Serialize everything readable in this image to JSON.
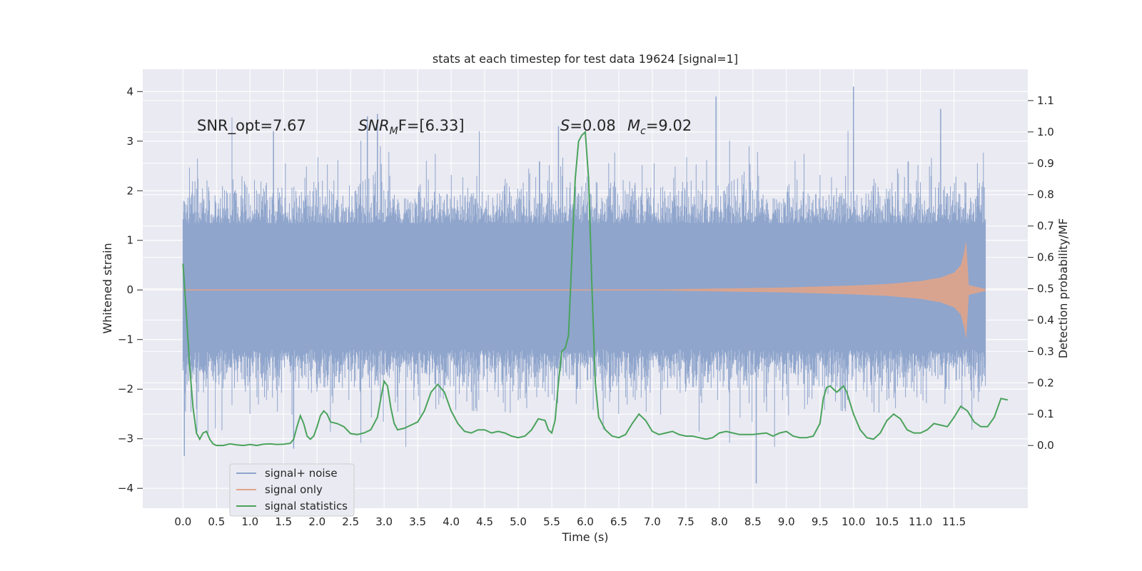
{
  "chart_data": {
    "type": "line",
    "title": "stats at each timestep for test data 19624 [signal=1]",
    "xlabel": "Time (s)",
    "ylabel_left": "Whitened strain",
    "ylabel_right": "Detection probability/MF",
    "xlim": [
      -0.6,
      12.6
    ],
    "ylim_left": [
      -4.4,
      4.45
    ],
    "ylim_right": [
      -0.2,
      1.2
    ],
    "x_ticks": [
      "0.0",
      "0.5",
      "1.0",
      "1.5",
      "2.0",
      "2.5",
      "3.0",
      "3.5",
      "4.0",
      "4.5",
      "5.0",
      "5.5",
      "6.0",
      "6.5",
      "7.0",
      "7.5",
      "8.0",
      "8.5",
      "9.0",
      "9.5",
      "10.0",
      "10.5",
      "11.0",
      "11.5"
    ],
    "y_ticks_left": [
      "4",
      "3",
      "2",
      "1",
      "0",
      "−1",
      "−2",
      "−3",
      "−4"
    ],
    "y_ticks_right": [
      "1.1",
      "1.0",
      "0.9",
      "0.8",
      "0.7",
      "0.6",
      "0.5",
      "0.4",
      "0.3",
      "0.2",
      "0.1",
      "0.0"
    ],
    "grid": true,
    "legend_position": "bottom-left",
    "colors": {
      "signal_noise": "#8fa5cc",
      "signal_only": "#e0a48a",
      "statistics": "#4aa35c",
      "plot_bg": "#eaeaf2",
      "grid": "#ffffff"
    },
    "annotations": {
      "snr_opt": "SNR_opt=7.67",
      "snr_mf_main": "SNR",
      "snr_mf_sub": "M",
      "snr_mf_tail": "F=[6.33]",
      "s_label": "S",
      "s_value": "=0.08",
      "mc_label": "M",
      "mc_sub": "c",
      "mc_value": "=9.02"
    },
    "series": [
      {
        "name": "signal+ noise",
        "kind": "noise_band",
        "t_range": [
          0.0,
          11.97
        ],
        "core_band": [
          -1.2,
          1.35
        ],
        "extreme_spikes": [
          {
            "t": 0.02,
            "y": -3.35
          },
          {
            "t": 1.35,
            "y": 3.2
          },
          {
            "t": 2.9,
            "y": 3.55
          },
          {
            "t": 5.6,
            "y": 3.3
          },
          {
            "t": 7.95,
            "y": 3.9
          },
          {
            "t": 8.55,
            "y": -3.9
          },
          {
            "t": 10.0,
            "y": 4.1
          },
          {
            "t": 11.3,
            "y": 3.65
          },
          {
            "t": 1.65,
            "y": -3.2
          },
          {
            "t": 2.75,
            "y": 3.5
          }
        ]
      },
      {
        "name": "signal only",
        "kind": "chirp_envelope",
        "t_start": 7.0,
        "t_merger": 11.68,
        "t_end": 11.97,
        "envelope": [
          {
            "t": 7.0,
            "a": 0.01
          },
          {
            "t": 8.0,
            "a": 0.03
          },
          {
            "t": 9.0,
            "a": 0.05
          },
          {
            "t": 10.0,
            "a": 0.09
          },
          {
            "t": 10.5,
            "a": 0.12
          },
          {
            "t": 11.0,
            "a": 0.18
          },
          {
            "t": 11.3,
            "a": 0.25
          },
          {
            "t": 11.5,
            "a": 0.35
          },
          {
            "t": 11.6,
            "a": 0.5
          },
          {
            "t": 11.65,
            "a": 0.75
          },
          {
            "t": 11.68,
            "a": 1.0
          },
          {
            "t": 11.72,
            "a": 0.1
          },
          {
            "t": 11.97,
            "a": 0.02
          }
        ]
      },
      {
        "name": "signal statistics",
        "kind": "line",
        "axis": "right",
        "points": [
          [
            0.0,
            0.58
          ],
          [
            0.05,
            0.42
          ],
          [
            0.1,
            0.25
          ],
          [
            0.15,
            0.12
          ],
          [
            0.2,
            0.04
          ],
          [
            0.25,
            0.02
          ],
          [
            0.3,
            0.04
          ],
          [
            0.35,
            0.045
          ],
          [
            0.4,
            0.02
          ],
          [
            0.45,
            0.005
          ],
          [
            0.5,
            0.0
          ],
          [
            0.6,
            0.0
          ],
          [
            0.7,
            0.005
          ],
          [
            0.8,
            0.002
          ],
          [
            0.9,
            0.0
          ],
          [
            1.0,
            0.003
          ],
          [
            1.1,
            0.0
          ],
          [
            1.2,
            0.004
          ],
          [
            1.3,
            0.005
          ],
          [
            1.4,
            0.003
          ],
          [
            1.5,
            0.004
          ],
          [
            1.6,
            0.007
          ],
          [
            1.65,
            0.02
          ],
          [
            1.7,
            0.06
          ],
          [
            1.75,
            0.095
          ],
          [
            1.8,
            0.07
          ],
          [
            1.85,
            0.03
          ],
          [
            1.9,
            0.02
          ],
          [
            1.95,
            0.03
          ],
          [
            2.0,
            0.06
          ],
          [
            2.05,
            0.095
          ],
          [
            2.1,
            0.11
          ],
          [
            2.15,
            0.1
          ],
          [
            2.2,
            0.075
          ],
          [
            2.3,
            0.07
          ],
          [
            2.4,
            0.06
          ],
          [
            2.5,
            0.038
          ],
          [
            2.6,
            0.035
          ],
          [
            2.7,
            0.04
          ],
          [
            2.8,
            0.05
          ],
          [
            2.9,
            0.09
          ],
          [
            2.95,
            0.15
          ],
          [
            3.0,
            0.205
          ],
          [
            3.05,
            0.19
          ],
          [
            3.1,
            0.12
          ],
          [
            3.15,
            0.07
          ],
          [
            3.2,
            0.05
          ],
          [
            3.3,
            0.055
          ],
          [
            3.4,
            0.065
          ],
          [
            3.5,
            0.075
          ],
          [
            3.6,
            0.11
          ],
          [
            3.7,
            0.17
          ],
          [
            3.8,
            0.195
          ],
          [
            3.9,
            0.17
          ],
          [
            4.0,
            0.11
          ],
          [
            4.1,
            0.07
          ],
          [
            4.2,
            0.045
          ],
          [
            4.3,
            0.04
          ],
          [
            4.4,
            0.05
          ],
          [
            4.5,
            0.05
          ],
          [
            4.6,
            0.04
          ],
          [
            4.7,
            0.045
          ],
          [
            4.8,
            0.04
          ],
          [
            4.9,
            0.03
          ],
          [
            5.0,
            0.025
          ],
          [
            5.1,
            0.03
          ],
          [
            5.2,
            0.05
          ],
          [
            5.3,
            0.085
          ],
          [
            5.4,
            0.08
          ],
          [
            5.45,
            0.05
          ],
          [
            5.5,
            0.04
          ],
          [
            5.55,
            0.08
          ],
          [
            5.6,
            0.2
          ],
          [
            5.65,
            0.3
          ],
          [
            5.7,
            0.31
          ],
          [
            5.75,
            0.35
          ],
          [
            5.8,
            0.6
          ],
          [
            5.85,
            0.85
          ],
          [
            5.9,
            0.97
          ],
          [
            5.95,
            0.99
          ],
          [
            6.0,
            1.0
          ],
          [
            6.05,
            0.85
          ],
          [
            6.1,
            0.5
          ],
          [
            6.15,
            0.2
          ],
          [
            6.2,
            0.09
          ],
          [
            6.3,
            0.05
          ],
          [
            6.4,
            0.03
          ],
          [
            6.5,
            0.025
          ],
          [
            6.6,
            0.035
          ],
          [
            6.7,
            0.07
          ],
          [
            6.8,
            0.1
          ],
          [
            6.9,
            0.08
          ],
          [
            7.0,
            0.045
          ],
          [
            7.1,
            0.035
          ],
          [
            7.2,
            0.04
          ],
          [
            7.3,
            0.045
          ],
          [
            7.4,
            0.035
          ],
          [
            7.5,
            0.03
          ],
          [
            7.6,
            0.03
          ],
          [
            7.7,
            0.025
          ],
          [
            7.8,
            0.02
          ],
          [
            7.9,
            0.025
          ],
          [
            8.0,
            0.04
          ],
          [
            8.1,
            0.045
          ],
          [
            8.2,
            0.04
          ],
          [
            8.3,
            0.035
          ],
          [
            8.5,
            0.035
          ],
          [
            8.7,
            0.04
          ],
          [
            8.8,
            0.03
          ],
          [
            8.9,
            0.04
          ],
          [
            9.0,
            0.045
          ],
          [
            9.1,
            0.03
          ],
          [
            9.2,
            0.025
          ],
          [
            9.3,
            0.025
          ],
          [
            9.4,
            0.03
          ],
          [
            9.5,
            0.07
          ],
          [
            9.55,
            0.15
          ],
          [
            9.6,
            0.185
          ],
          [
            9.65,
            0.19
          ],
          [
            9.7,
            0.18
          ],
          [
            9.75,
            0.17
          ],
          [
            9.8,
            0.18
          ],
          [
            9.85,
            0.19
          ],
          [
            9.9,
            0.17
          ],
          [
            10.0,
            0.1
          ],
          [
            10.1,
            0.05
          ],
          [
            10.2,
            0.025
          ],
          [
            10.3,
            0.02
          ],
          [
            10.4,
            0.04
          ],
          [
            10.5,
            0.08
          ],
          [
            10.6,
            0.1
          ],
          [
            10.7,
            0.085
          ],
          [
            10.8,
            0.05
          ],
          [
            10.9,
            0.04
          ],
          [
            11.0,
            0.04
          ],
          [
            11.1,
            0.05
          ],
          [
            11.2,
            0.07
          ],
          [
            11.3,
            0.065
          ],
          [
            11.4,
            0.06
          ],
          [
            11.5,
            0.09
          ],
          [
            11.6,
            0.125
          ],
          [
            11.7,
            0.11
          ],
          [
            11.8,
            0.075
          ],
          [
            11.9,
            0.06
          ],
          [
            12.0,
            0.06
          ],
          [
            12.1,
            0.09
          ],
          [
            12.15,
            0.12
          ],
          [
            12.2,
            0.15
          ],
          [
            12.3,
            0.145
          ]
        ]
      }
    ]
  }
}
